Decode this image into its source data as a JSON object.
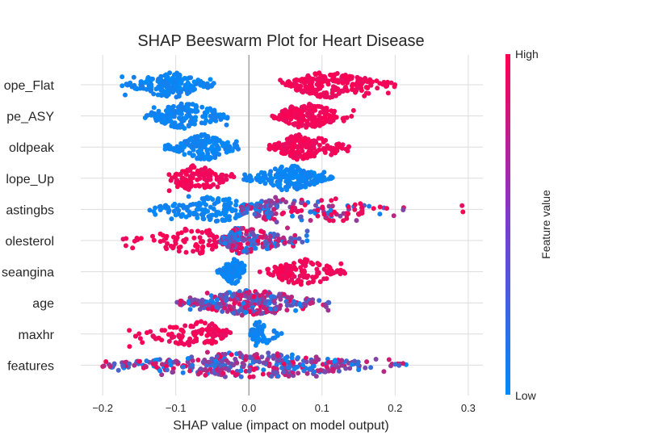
{
  "chart_data": {
    "type": "scatter",
    "subtype": "shap-beeswarm",
    "title": "SHAP Beeswarm Plot for Heart Disease",
    "xlabel": "SHAP value (impact on model output)",
    "xlim": [
      -0.23,
      0.32
    ],
    "xticks": [
      -0.2,
      -0.1,
      0.0,
      0.1,
      0.2,
      0.3
    ],
    "xtick_labels": [
      "−0.2",
      "−0.1",
      "0.0",
      "0.1",
      "0.2",
      "0.3"
    ],
    "grid": true,
    "colorbar": {
      "label": "Feature value",
      "high_label": "High",
      "low_label": "Low",
      "low_color": "#008bfb",
      "high_color": "#ff0051"
    },
    "features": [
      {
        "name": "st_slope_Flat",
        "label": "ope_Flat",
        "groups": [
          {
            "min": -0.175,
            "max": -0.045,
            "center": -0.105,
            "n": 170,
            "color": "low"
          },
          {
            "min": 0.04,
            "max": 0.205,
            "center": 0.105,
            "n": 210,
            "color": "high"
          }
        ]
      },
      {
        "name": "chestpaintype_ASY",
        "label": "pe_ASY",
        "groups": [
          {
            "min": -0.145,
            "max": -0.02,
            "center": -0.09,
            "n": 180,
            "color": "low"
          },
          {
            "min": 0.03,
            "max": 0.145,
            "center": 0.075,
            "n": 180,
            "color": "high"
          }
        ]
      },
      {
        "name": "oldpeak",
        "label": "oldpeak",
        "groups": [
          {
            "min": -0.115,
            "max": -0.01,
            "center": -0.06,
            "n": 160,
            "color": "low"
          },
          {
            "min": 0.025,
            "max": 0.14,
            "center": 0.07,
            "n": 180,
            "color": "high"
          }
        ]
      },
      {
        "name": "st_slope_Up",
        "label": "lope_Up",
        "groups": [
          {
            "min": -0.11,
            "max": -0.02,
            "center": -0.075,
            "n": 140,
            "color": "high"
          },
          {
            "min": -0.01,
            "max": 0.115,
            "center": 0.055,
            "n": 180,
            "color": "low"
          }
        ]
      },
      {
        "name": "fastingbs",
        "label": "astingbs",
        "groups": [
          {
            "min": -0.14,
            "max": 0.02,
            "center": -0.045,
            "n": 150,
            "color": "low"
          },
          {
            "min": -0.02,
            "max": 0.215,
            "center": 0.04,
            "n": 130,
            "color": "mix"
          },
          {
            "min": 0.05,
            "max": 0.21,
            "center": 0.12,
            "n": 30,
            "color": "high"
          },
          {
            "min": 0.27,
            "max": 0.295,
            "center": 0.282,
            "n": 2,
            "color": "high"
          }
        ]
      },
      {
        "name": "cholesterol",
        "label": "olesterol",
        "groups": [
          {
            "min": -0.175,
            "max": -0.02,
            "center": -0.07,
            "n": 90,
            "color": "high"
          },
          {
            "min": -0.04,
            "max": 0.08,
            "center": -0.015,
            "n": 220,
            "color": "mix"
          }
        ]
      },
      {
        "name": "exerciseangina",
        "label": "seangina",
        "groups": [
          {
            "min": -0.045,
            "max": -0.005,
            "center": -0.02,
            "n": 120,
            "color": "low"
          },
          {
            "min": 0.015,
            "max": 0.14,
            "center": 0.07,
            "n": 120,
            "color": "high"
          }
        ]
      },
      {
        "name": "age",
        "label": "age",
        "groups": [
          {
            "min": -0.1,
            "max": 0.115,
            "center": 0.0,
            "n": 300,
            "color": "mix"
          }
        ]
      },
      {
        "name": "maxhr",
        "label": "maxhr",
        "groups": [
          {
            "min": -0.165,
            "max": -0.025,
            "center": -0.06,
            "n": 120,
            "color": "high"
          },
          {
            "min": 0.0,
            "max": 0.045,
            "center": 0.012,
            "n": 60,
            "color": "low"
          }
        ]
      },
      {
        "name": "other_features",
        "label": "features",
        "groups": [
          {
            "min": -0.21,
            "max": 0.215,
            "center": 0.0,
            "n": 380,
            "color": "mix"
          }
        ]
      }
    ]
  }
}
